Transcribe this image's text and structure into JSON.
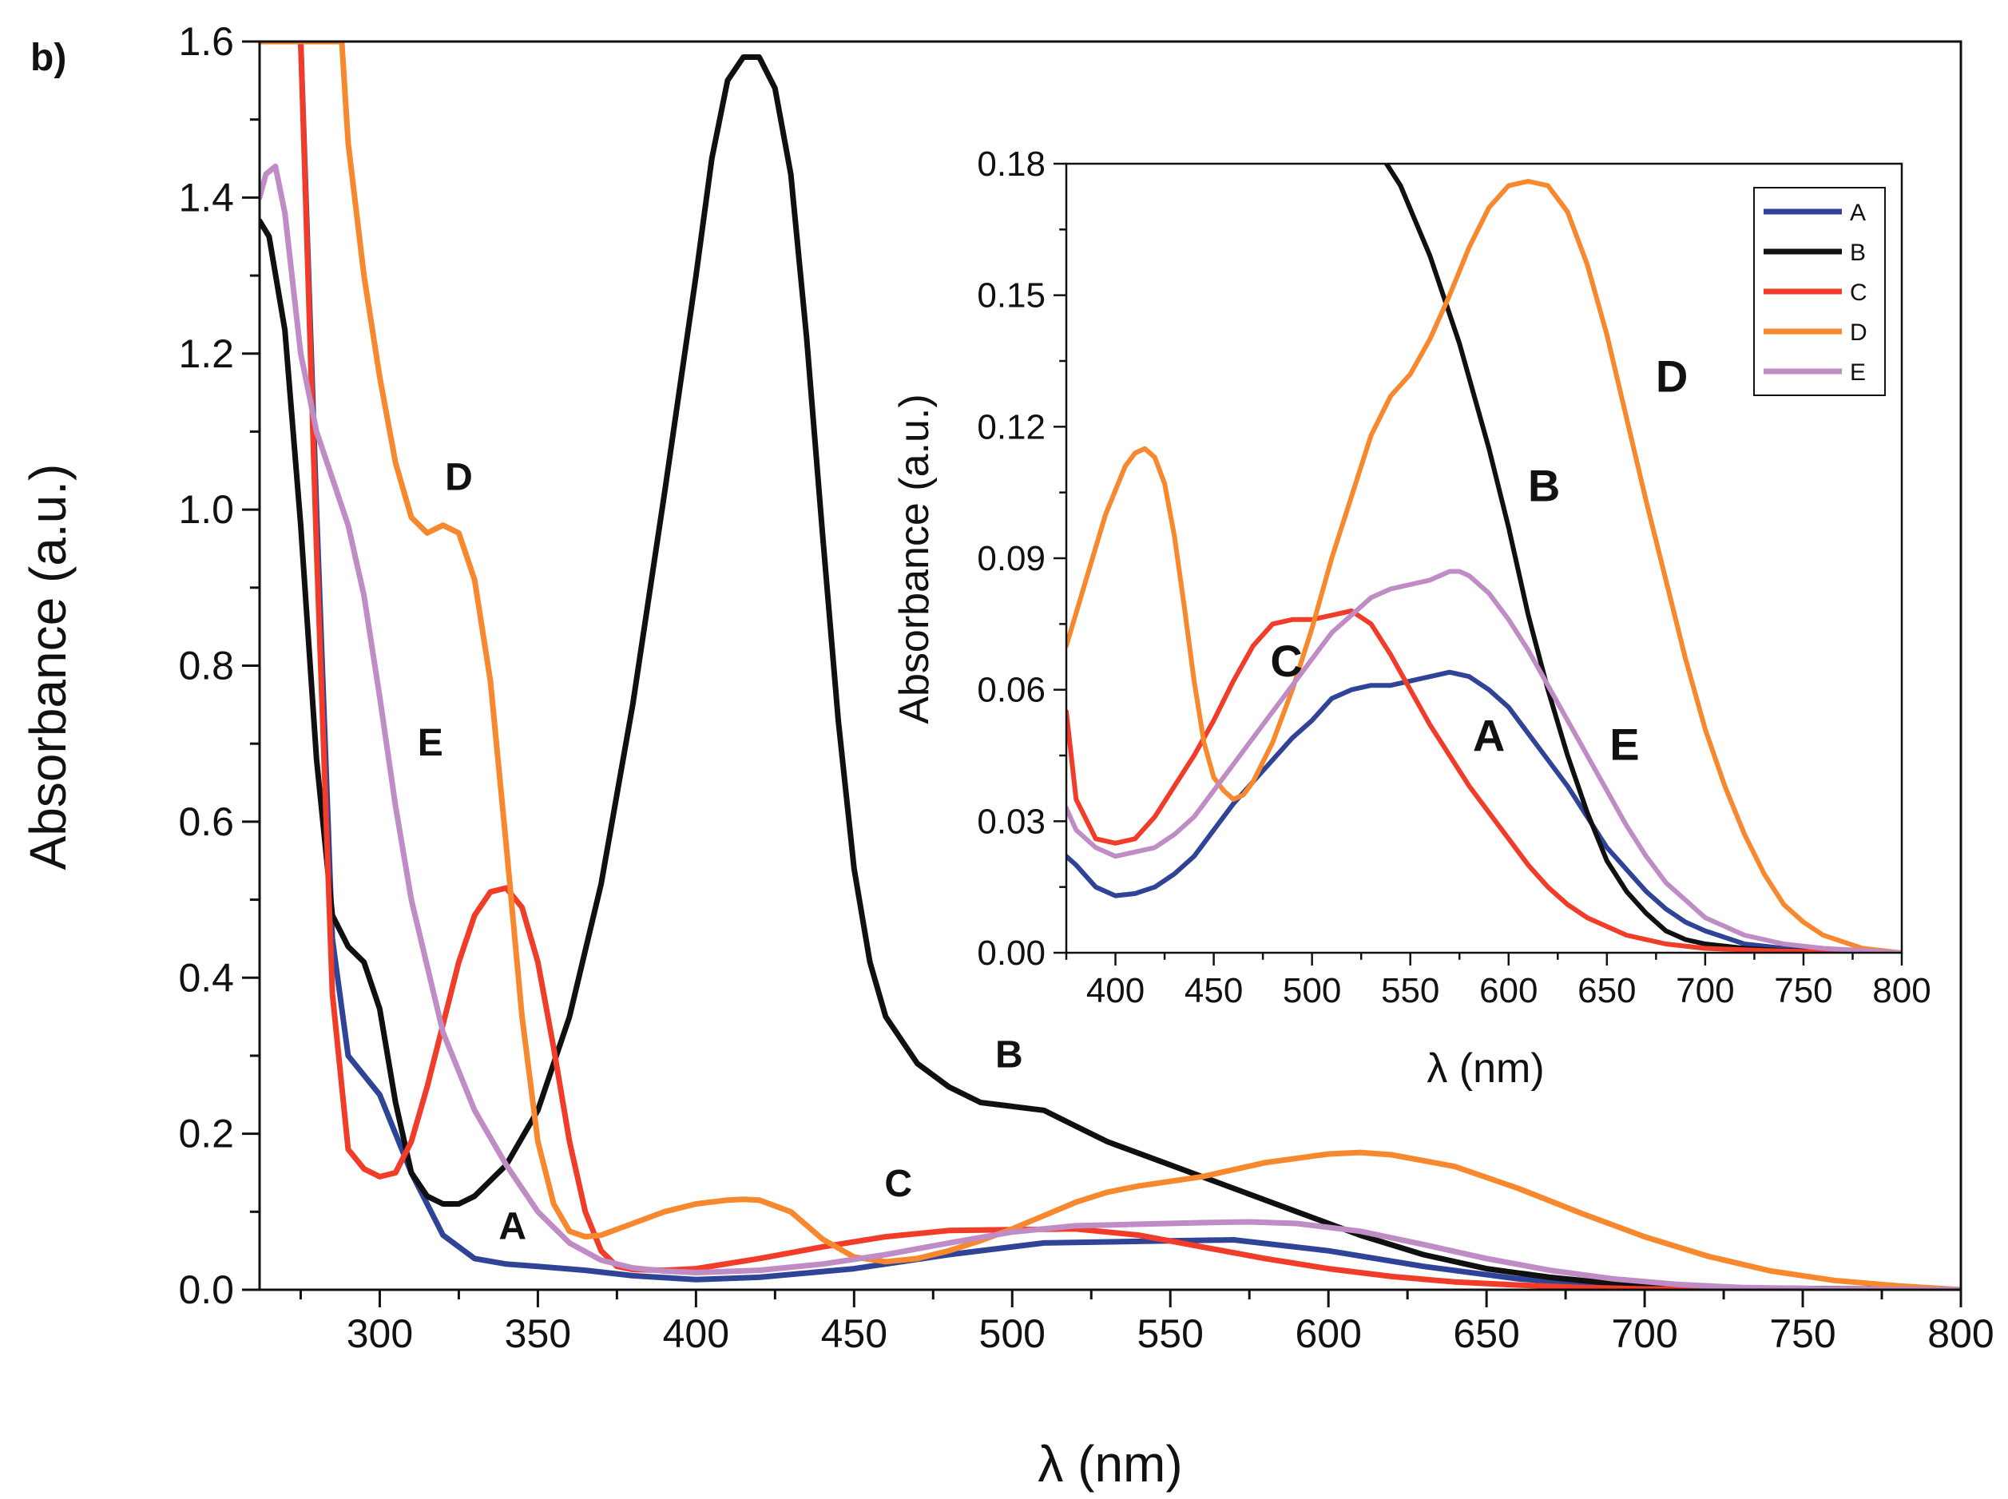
{
  "panel_label": "b)",
  "colors": {
    "A": "#2f4496",
    "B": "#101010",
    "C": "#f03c28",
    "D": "#f7882e",
    "E": "#c08cc6"
  },
  "chart_data": [
    {
      "id": "main",
      "type": "line",
      "title": "",
      "xlabel": "λ (nm)",
      "ylabel": "Absorbance (a.u.)",
      "xlim": [
        262,
        800
      ],
      "ylim": [
        0,
        1.6
      ],
      "xticks": [
        300,
        350,
        400,
        450,
        500,
        550,
        600,
        650,
        700,
        750,
        800
      ],
      "xtick_labels": [
        "300",
        "350",
        "400",
        "450",
        "500",
        "550",
        "600",
        "650",
        "700",
        "750",
        "800"
      ],
      "yticks": [
        0,
        0.2,
        0.4,
        0.6,
        0.8,
        1.0,
        1.2,
        1.4,
        1.6
      ],
      "ytick_labels": [
        "0.0",
        "0.2",
        "0.4",
        "0.6",
        "0.8",
        "1.0",
        "1.2",
        "1.4",
        "1.6"
      ],
      "grid": false,
      "series": [
        {
          "name": "A",
          "x": [
            262,
            268,
            275,
            280,
            285,
            290,
            300,
            310,
            320,
            330,
            340,
            350,
            365,
            380,
            400,
            420,
            450,
            480,
            510,
            540,
            570,
            600,
            630,
            660,
            690,
            720,
            760,
            800
          ],
          "y": [
            1.6,
            1.6,
            1.6,
            1.0,
            0.45,
            0.3,
            0.25,
            0.15,
            0.07,
            0.04,
            0.033,
            0.03,
            0.025,
            0.018,
            0.013,
            0.016,
            0.027,
            0.045,
            0.06,
            0.062,
            0.064,
            0.05,
            0.03,
            0.014,
            0.005,
            0.002,
            0.001,
            0.0
          ]
        },
        {
          "name": "B",
          "x": [
            262,
            265,
            270,
            275,
            280,
            285,
            290,
            295,
            300,
            305,
            310,
            315,
            320,
            325,
            330,
            340,
            350,
            360,
            370,
            380,
            390,
            400,
            405,
            410,
            415,
            420,
            425,
            430,
            435,
            440,
            445,
            450,
            455,
            460,
            470,
            480,
            490,
            500,
            510,
            520,
            530,
            550,
            570,
            590,
            610,
            630,
            650,
            670,
            690,
            710,
            740,
            770,
            800
          ],
          "y": [
            1.37,
            1.35,
            1.23,
            0.98,
            0.68,
            0.48,
            0.44,
            0.42,
            0.36,
            0.24,
            0.15,
            0.12,
            0.11,
            0.11,
            0.12,
            0.16,
            0.23,
            0.35,
            0.52,
            0.75,
            1.02,
            1.3,
            1.45,
            1.55,
            1.58,
            1.58,
            1.54,
            1.43,
            1.22,
            0.97,
            0.73,
            0.54,
            0.42,
            0.35,
            0.29,
            0.26,
            0.24,
            0.235,
            0.23,
            0.21,
            0.19,
            0.16,
            0.13,
            0.1,
            0.07,
            0.045,
            0.027,
            0.016,
            0.008,
            0.004,
            0.002,
            0.001,
            0.0
          ]
        },
        {
          "name": "C",
          "x": [
            262,
            275,
            280,
            285,
            290,
            295,
            300,
            305,
            310,
            315,
            320,
            325,
            330,
            335,
            340,
            345,
            350,
            355,
            360,
            365,
            370,
            375,
            380,
            390,
            400,
            420,
            440,
            460,
            480,
            500,
            520,
            540,
            560,
            580,
            600,
            620,
            640,
            660,
            680,
            700,
            730,
            760,
            800
          ],
          "y": [
            1.6,
            1.6,
            0.95,
            0.38,
            0.18,
            0.155,
            0.145,
            0.15,
            0.19,
            0.26,
            0.34,
            0.42,
            0.48,
            0.51,
            0.515,
            0.49,
            0.42,
            0.31,
            0.19,
            0.1,
            0.05,
            0.03,
            0.026,
            0.025,
            0.027,
            0.04,
            0.055,
            0.068,
            0.076,
            0.077,
            0.078,
            0.07,
            0.055,
            0.04,
            0.027,
            0.017,
            0.01,
            0.006,
            0.003,
            0.001,
            0.0005,
            0.0002,
            0.0
          ]
        },
        {
          "name": "D",
          "x": [
            262,
            285,
            288,
            290,
            295,
            300,
            305,
            310,
            315,
            320,
            325,
            330,
            335,
            340,
            345,
            350,
            355,
            360,
            365,
            370,
            380,
            390,
            400,
            410,
            415,
            420,
            430,
            440,
            450,
            460,
            470,
            480,
            490,
            500,
            510,
            520,
            530,
            540,
            560,
            580,
            600,
            610,
            620,
            640,
            660,
            680,
            700,
            720,
            740,
            760,
            780,
            800
          ],
          "y": [
            1.6,
            1.6,
            1.6,
            1.47,
            1.3,
            1.17,
            1.06,
            0.99,
            0.97,
            0.98,
            0.97,
            0.91,
            0.78,
            0.57,
            0.35,
            0.19,
            0.11,
            0.075,
            0.068,
            0.07,
            0.085,
            0.1,
            0.11,
            0.115,
            0.116,
            0.115,
            0.1,
            0.065,
            0.042,
            0.036,
            0.04,
            0.05,
            0.063,
            0.078,
            0.095,
            0.112,
            0.125,
            0.133,
            0.145,
            0.163,
            0.174,
            0.176,
            0.173,
            0.158,
            0.13,
            0.098,
            0.068,
            0.043,
            0.024,
            0.012,
            0.005,
            0.0
          ]
        },
        {
          "name": "E",
          "x": [
            262,
            264,
            267,
            270,
            275,
            280,
            285,
            290,
            295,
            300,
            305,
            310,
            320,
            330,
            340,
            350,
            360,
            370,
            380,
            390,
            400,
            420,
            440,
            460,
            480,
            500,
            520,
            540,
            560,
            575,
            590,
            610,
            630,
            650,
            670,
            690,
            710,
            730,
            760,
            800
          ],
          "y": [
            1.4,
            1.43,
            1.44,
            1.38,
            1.2,
            1.1,
            1.04,
            0.98,
            0.89,
            0.76,
            0.62,
            0.5,
            0.33,
            0.23,
            0.16,
            0.1,
            0.06,
            0.038,
            0.028,
            0.024,
            0.022,
            0.025,
            0.033,
            0.045,
            0.06,
            0.074,
            0.082,
            0.084,
            0.086,
            0.087,
            0.085,
            0.075,
            0.058,
            0.04,
            0.025,
            0.014,
            0.007,
            0.003,
            0.001,
            0.0
          ]
        }
      ],
      "annotations": [
        {
          "text": "D",
          "x": 325,
          "y": 1.025
        },
        {
          "text": "E",
          "x": 316,
          "y": 0.685
        },
        {
          "text": "A",
          "x": 342,
          "y": 0.065
        },
        {
          "text": "C",
          "x": 464,
          "y": 0.12
        },
        {
          "text": "B",
          "x": 499,
          "y": 0.285
        }
      ]
    },
    {
      "id": "inset",
      "type": "line",
      "title": "",
      "xlabel": "λ (nm)",
      "ylabel": "Absorbance (a.u.)",
      "xlim": [
        375,
        800
      ],
      "ylim": [
        0,
        0.18
      ],
      "xticks": [
        400,
        450,
        500,
        550,
        600,
        650,
        700,
        750,
        800
      ],
      "xtick_labels": [
        "400",
        "450",
        "500",
        "550",
        "600",
        "650",
        "700",
        "750",
        "800"
      ],
      "yticks": [
        0,
        0.03,
        0.06,
        0.09,
        0.12,
        0.15,
        0.18
      ],
      "ytick_labels": [
        "0.00",
        "0.03",
        "0.06",
        "0.09",
        "0.12",
        "0.15",
        "0.18"
      ],
      "grid": false,
      "legend": {
        "position": "top-right",
        "entries": [
          "A",
          "B",
          "C",
          "D",
          "E"
        ]
      },
      "series": [
        {
          "name": "A",
          "x": [
            375,
            380,
            390,
            400,
            410,
            420,
            430,
            440,
            450,
            460,
            470,
            480,
            490,
            500,
            510,
            520,
            530,
            540,
            550,
            560,
            570,
            580,
            590,
            600,
            610,
            620,
            630,
            640,
            650,
            660,
            670,
            680,
            690,
            700,
            720,
            740,
            760,
            800
          ],
          "y": [
            0.022,
            0.02,
            0.015,
            0.013,
            0.0135,
            0.015,
            0.018,
            0.022,
            0.028,
            0.034,
            0.039,
            0.044,
            0.049,
            0.053,
            0.058,
            0.06,
            0.061,
            0.061,
            0.062,
            0.063,
            0.064,
            0.063,
            0.06,
            0.056,
            0.05,
            0.044,
            0.038,
            0.031,
            0.024,
            0.019,
            0.014,
            0.01,
            0.007,
            0.005,
            0.002,
            0.001,
            0.0005,
            0.0
          ]
        },
        {
          "name": "B",
          "x": [
            535,
            545,
            560,
            575,
            590,
            600,
            610,
            620,
            630,
            640,
            650,
            660,
            670,
            680,
            690,
            700,
            720,
            740,
            770,
            800
          ],
          "y": [
            0.182,
            0.175,
            0.159,
            0.139,
            0.115,
            0.097,
            0.077,
            0.06,
            0.045,
            0.032,
            0.021,
            0.014,
            0.009,
            0.005,
            0.003,
            0.002,
            0.001,
            0.0005,
            0.0002,
            0.0
          ]
        },
        {
          "name": "C",
          "x": [
            375,
            380,
            390,
            400,
            410,
            420,
            430,
            440,
            450,
            460,
            470,
            480,
            490,
            500,
            510,
            520,
            530,
            540,
            550,
            560,
            570,
            580,
            590,
            600,
            610,
            620,
            630,
            640,
            650,
            660,
            680,
            700,
            730,
            760,
            800
          ],
          "y": [
            0.055,
            0.035,
            0.026,
            0.025,
            0.026,
            0.031,
            0.038,
            0.045,
            0.053,
            0.062,
            0.07,
            0.075,
            0.076,
            0.076,
            0.077,
            0.078,
            0.075,
            0.068,
            0.06,
            0.052,
            0.045,
            0.038,
            0.032,
            0.026,
            0.02,
            0.015,
            0.011,
            0.008,
            0.006,
            0.004,
            0.002,
            0.001,
            0.0005,
            0.0002,
            0.0
          ]
        },
        {
          "name": "D",
          "x": [
            375,
            385,
            395,
            405,
            410,
            415,
            420,
            425,
            430,
            435,
            440,
            445,
            450,
            455,
            460,
            465,
            470,
            480,
            490,
            500,
            510,
            520,
            530,
            540,
            550,
            560,
            570,
            580,
            590,
            600,
            610,
            620,
            630,
            640,
            650,
            660,
            670,
            680,
            690,
            700,
            710,
            720,
            730,
            740,
            750,
            760,
            780,
            800
          ],
          "y": [
            0.07,
            0.085,
            0.1,
            0.111,
            0.114,
            0.115,
            0.113,
            0.107,
            0.095,
            0.079,
            0.062,
            0.048,
            0.04,
            0.037,
            0.035,
            0.036,
            0.039,
            0.048,
            0.06,
            0.074,
            0.09,
            0.104,
            0.118,
            0.127,
            0.132,
            0.14,
            0.15,
            0.161,
            0.17,
            0.175,
            0.176,
            0.175,
            0.169,
            0.157,
            0.141,
            0.122,
            0.103,
            0.085,
            0.067,
            0.051,
            0.038,
            0.027,
            0.018,
            0.011,
            0.007,
            0.004,
            0.001,
            0.0
          ]
        },
        {
          "name": "E",
          "x": [
            375,
            380,
            390,
            400,
            410,
            420,
            430,
            440,
            450,
            460,
            470,
            480,
            490,
            500,
            510,
            520,
            530,
            540,
            550,
            560,
            570,
            575,
            580,
            590,
            600,
            610,
            620,
            630,
            640,
            650,
            660,
            670,
            680,
            690,
            700,
            720,
            740,
            760,
            800
          ],
          "y": [
            0.033,
            0.028,
            0.024,
            0.022,
            0.023,
            0.024,
            0.027,
            0.031,
            0.037,
            0.043,
            0.049,
            0.055,
            0.061,
            0.067,
            0.073,
            0.077,
            0.081,
            0.083,
            0.084,
            0.085,
            0.087,
            0.087,
            0.086,
            0.082,
            0.076,
            0.069,
            0.061,
            0.053,
            0.045,
            0.037,
            0.029,
            0.022,
            0.016,
            0.012,
            0.008,
            0.004,
            0.002,
            0.001,
            0.0
          ]
        }
      ],
      "annotations": [
        {
          "text": "D",
          "x": 683,
          "y": 0.128
        },
        {
          "text": "B",
          "x": 618,
          "y": 0.103
        },
        {
          "text": "C",
          "x": 487,
          "y": 0.063
        },
        {
          "text": "A",
          "x": 590,
          "y": 0.046
        },
        {
          "text": "E",
          "x": 659,
          "y": 0.044
        }
      ]
    }
  ]
}
